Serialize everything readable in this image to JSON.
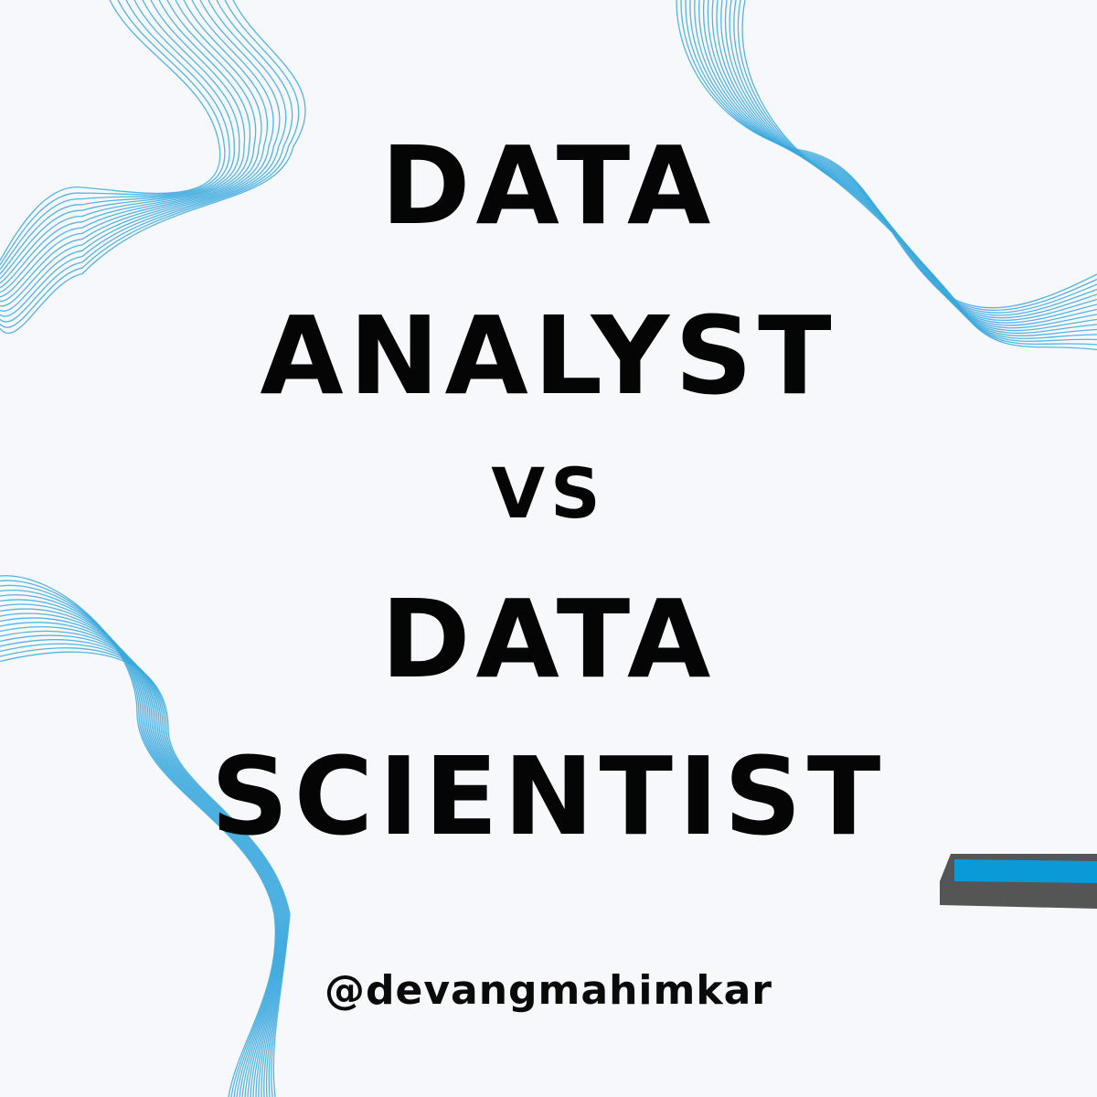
{
  "headline": {
    "line1": "DATA",
    "line2": "ANALYST",
    "line3": "VS",
    "line4": "DATA",
    "line5": "SCIENTIST"
  },
  "handle": "@devangmahimkar",
  "colors": {
    "background": "#f6f8fb",
    "wave_stroke": "#3aa8dd",
    "text": "#050505",
    "bar_accent": "#0b9ad8",
    "bar_frame": "#555555"
  }
}
